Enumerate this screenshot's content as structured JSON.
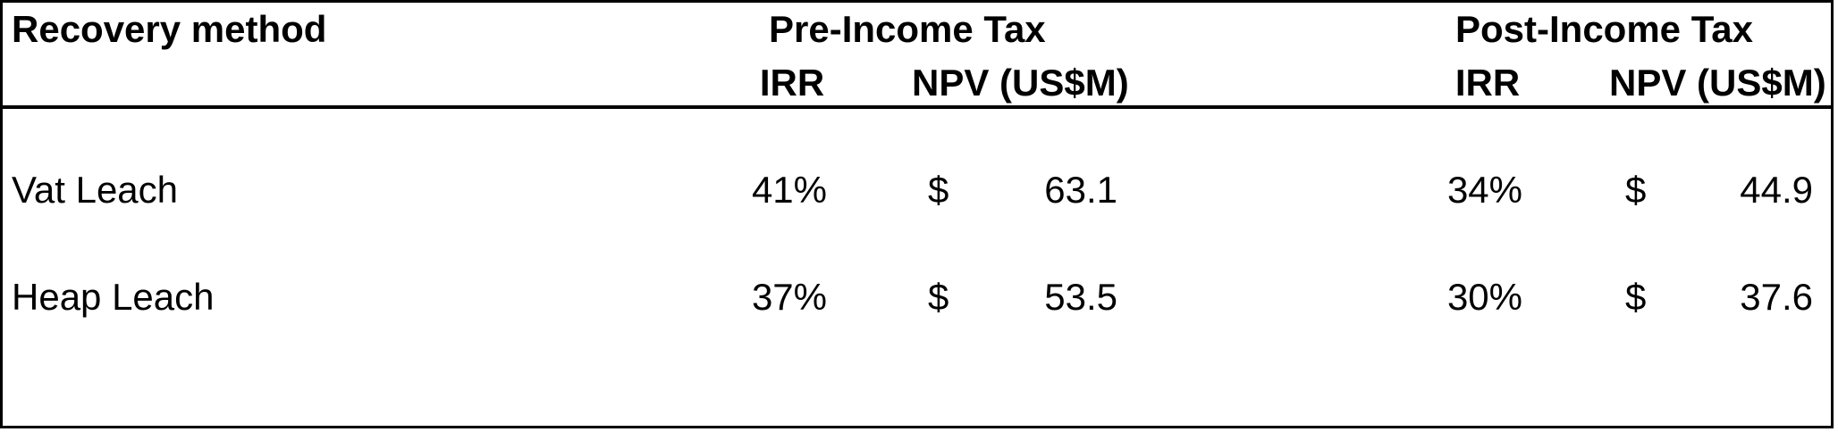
{
  "header": {
    "recovery_method": "Recovery method",
    "pre_tax": "Pre-Income Tax",
    "post_tax": "Post-Income Tax",
    "irr": "IRR",
    "npv": "NPV (US$M)"
  },
  "rows": [
    {
      "method": "Vat Leach",
      "pre_irr": "41%",
      "pre_cur": "$",
      "pre_npv": "63.1",
      "post_irr": "34%",
      "post_cur": "$",
      "post_npv": "44.9"
    },
    {
      "method": "Heap Leach",
      "pre_irr": "37%",
      "pre_cur": "$",
      "pre_npv": "53.5",
      "post_irr": "30%",
      "post_cur": "$",
      "post_npv": "37.6"
    }
  ]
}
